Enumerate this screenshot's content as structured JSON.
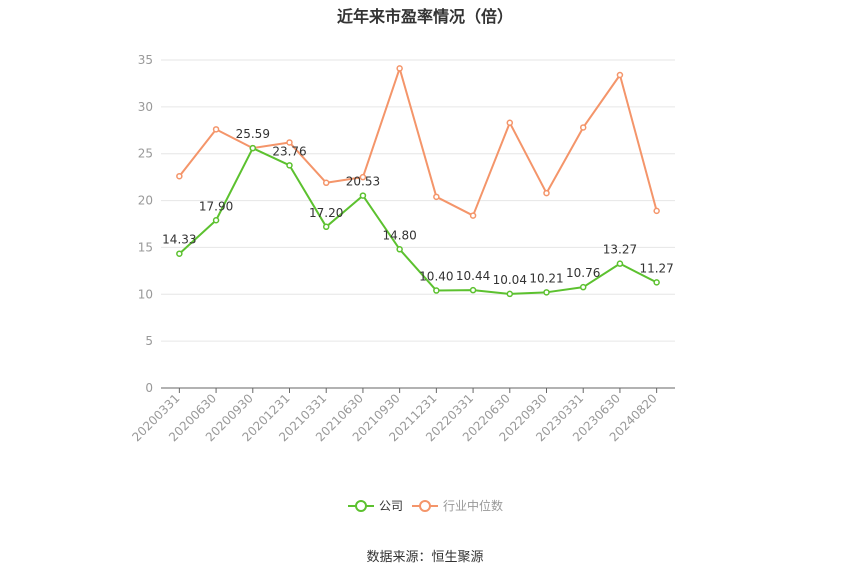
{
  "chart_data": {
    "type": "line",
    "title": "近年来市盈率情况（倍）",
    "source": "数据来源：恒生聚源",
    "categories": [
      "20200331",
      "20200630",
      "20200930",
      "20201231",
      "20210331",
      "20210630",
      "20210930",
      "20211231",
      "20220331",
      "20220630",
      "20220930",
      "20230331",
      "20230630",
      "20240820"
    ],
    "series": [
      {
        "name": "公司",
        "color": "#5cc12f",
        "values": [
          14.33,
          17.9,
          25.59,
          23.76,
          17.2,
          20.53,
          14.8,
          10.4,
          10.44,
          10.04,
          10.21,
          10.76,
          13.27,
          11.27
        ],
        "labels": [
          "14.33",
          "17.90",
          "25.59",
          "23.76",
          "17.20",
          "20.53",
          "14.80",
          "10.40",
          "10.44",
          "10.04",
          "10.21",
          "10.76",
          "13.27",
          "11.27"
        ]
      },
      {
        "name": "行业中位数",
        "color": "#f4956a",
        "values": [
          22.6,
          27.6,
          25.6,
          26.2,
          21.9,
          22.5,
          34.1,
          20.4,
          18.4,
          28.3,
          20.8,
          27.8,
          33.4,
          18.9
        ]
      }
    ],
    "ylim": [
      0,
      35
    ],
    "yticks": [
      "0",
      "5",
      "10",
      "15",
      "20",
      "25",
      "30",
      "35"
    ],
    "grid": true,
    "legend": "bottom-center"
  }
}
